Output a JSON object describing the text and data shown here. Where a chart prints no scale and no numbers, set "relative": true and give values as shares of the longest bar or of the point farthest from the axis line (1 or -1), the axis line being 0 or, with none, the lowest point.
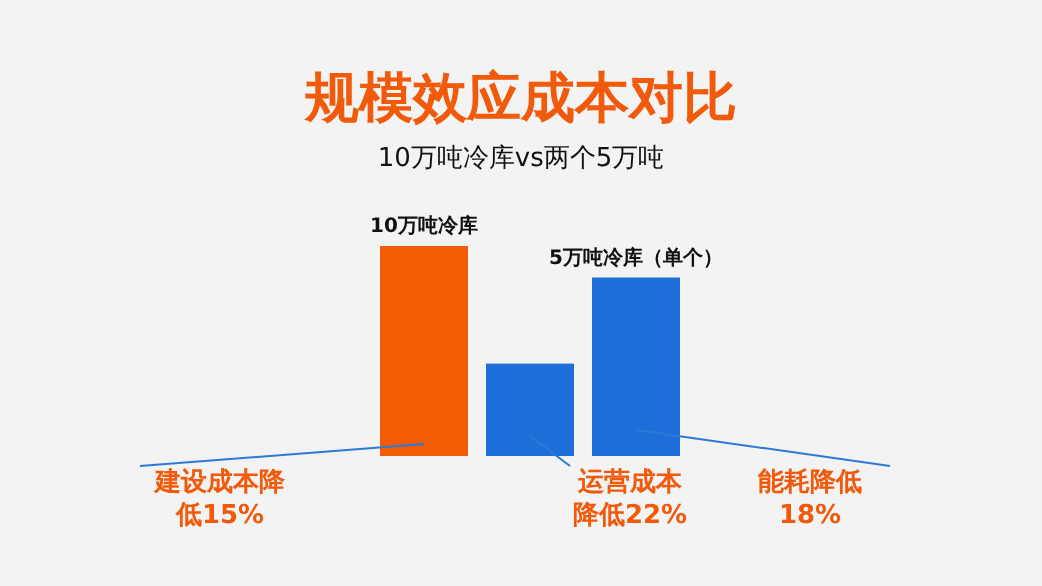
{
  "chart_data": {
    "type": "bar",
    "title": "规模效应成本对比",
    "subtitle": "10万吨冷库vs两个5万吨",
    "categories": [
      "10万吨冷库",
      null,
      "5万吨冷库（单个）"
    ],
    "values": [
      1,
      0.44,
      0.85
    ],
    "colors": [
      "#f25c05",
      "#1e6fd9",
      "#1e6fd9"
    ],
    "relative": true,
    "annotations": [
      "建设成本降低15%",
      "运营成本降低22%",
      "能耗降低18%"
    ]
  }
}
